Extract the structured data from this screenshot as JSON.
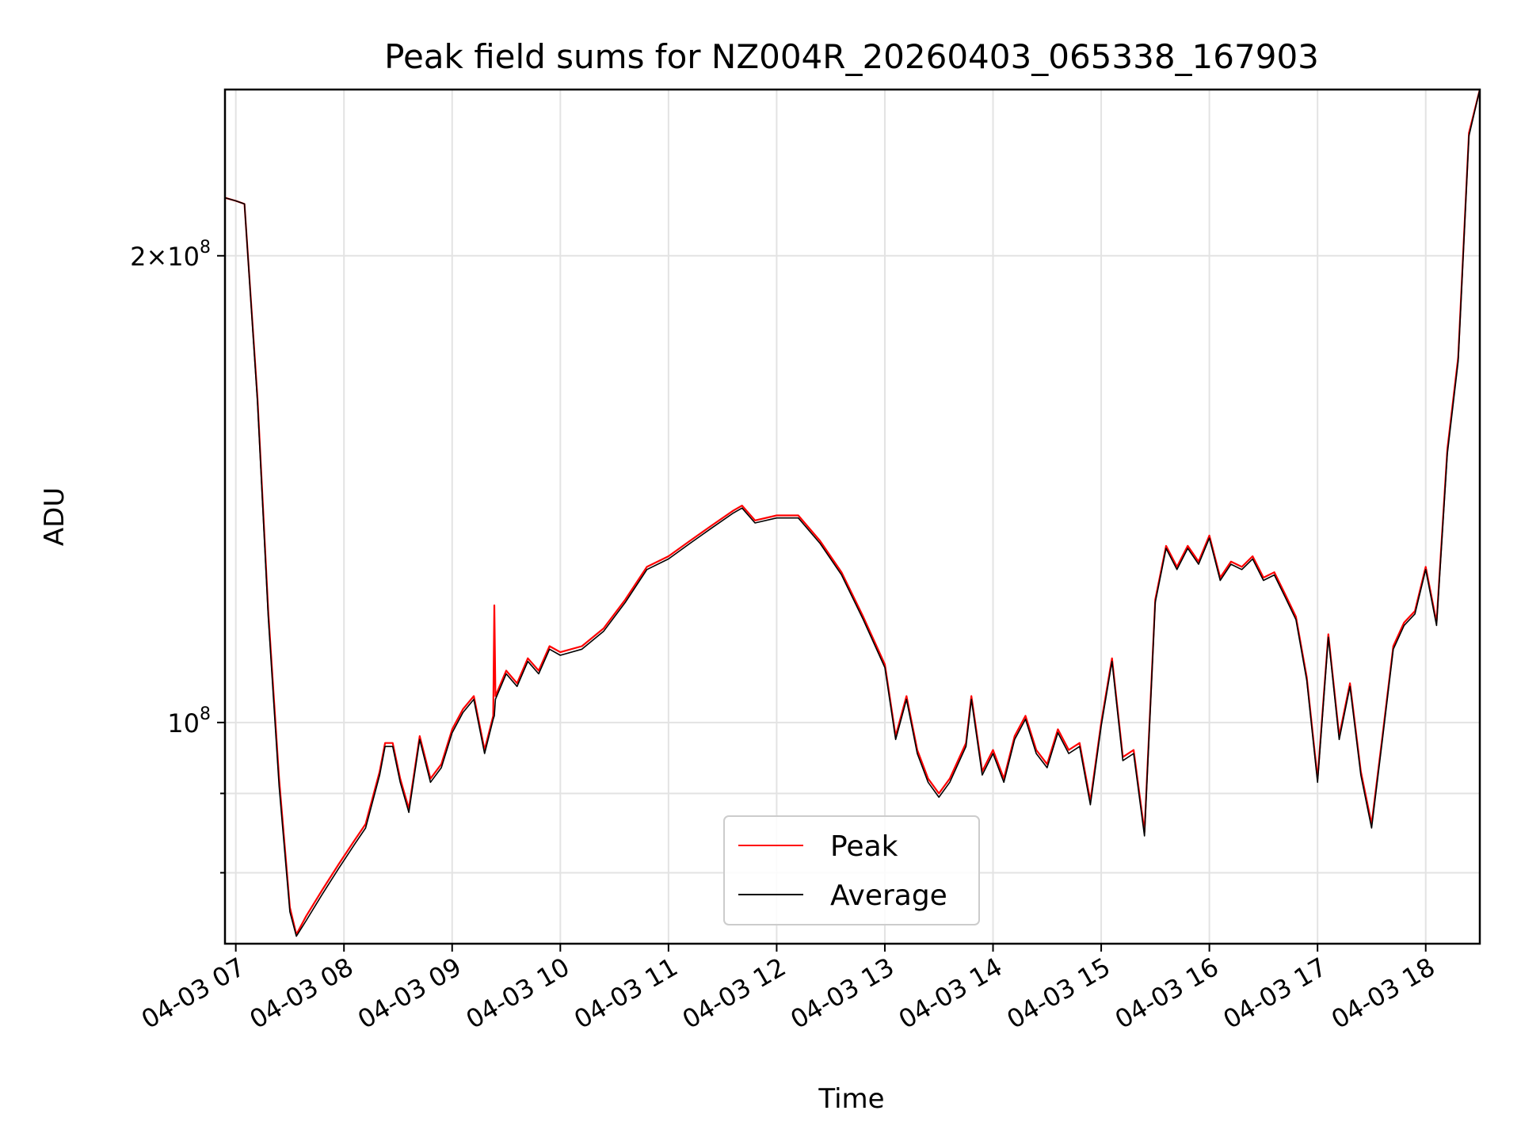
{
  "chart_data": {
    "type": "line",
    "title": "Peak field sums for NZ004R_20260403_065338_167903",
    "xlabel": "Time",
    "ylabel": "ADU",
    "yscale": "log",
    "ylim": [
      72000000,
      256000000
    ],
    "xlim": [
      6.9,
      18.5
    ],
    "grid": true,
    "legend_position": "bottom-center",
    "x_ticks": [
      {
        "value": 7,
        "label": "04-03 07"
      },
      {
        "value": 8,
        "label": "04-03 08"
      },
      {
        "value": 9,
        "label": "04-03 09"
      },
      {
        "value": 10,
        "label": "04-03 10"
      },
      {
        "value": 11,
        "label": "04-03 11"
      },
      {
        "value": 12,
        "label": "04-03 12"
      },
      {
        "value": 13,
        "label": "04-03 13"
      },
      {
        "value": 14,
        "label": "04-03 14"
      },
      {
        "value": 15,
        "label": "04-03 15"
      },
      {
        "value": 16,
        "label": "04-03 16"
      },
      {
        "value": 17,
        "label": "04-03 17"
      },
      {
        "value": 18,
        "label": "04-03 18"
      }
    ],
    "y_major_ticks": [
      {
        "value": 100000000,
        "mantissa": "",
        "exponent": "8"
      },
      {
        "value": 200000000,
        "mantissa": "2",
        "exponent": "8"
      }
    ],
    "y_minor_ticks": [
      80000000,
      90000000
    ],
    "series": [
      {
        "name": "Peak",
        "color": "#ff0000",
        "x": [
          6.9,
          7.0,
          7.08,
          7.2,
          7.3,
          7.4,
          7.5,
          7.56,
          7.65,
          7.8,
          7.95,
          8.1,
          8.2,
          8.33,
          8.38,
          8.45,
          8.52,
          8.6,
          8.7,
          8.8,
          8.9,
          9.0,
          9.1,
          9.2,
          9.3,
          9.38,
          9.39,
          9.4,
          9.5,
          9.6,
          9.7,
          9.8,
          9.9,
          10.0,
          10.2,
          10.4,
          10.6,
          10.8,
          11.0,
          11.2,
          11.4,
          11.6,
          11.68,
          11.8,
          12.0,
          12.2,
          12.4,
          12.6,
          12.8,
          13.0,
          13.1,
          13.2,
          13.3,
          13.4,
          13.5,
          13.6,
          13.75,
          13.8,
          13.9,
          14.0,
          14.1,
          14.2,
          14.3,
          14.4,
          14.5,
          14.6,
          14.7,
          14.8,
          14.9,
          15.0,
          15.1,
          15.2,
          15.3,
          15.4,
          15.5,
          15.6,
          15.7,
          15.8,
          15.9,
          16.0,
          16.1,
          16.2,
          16.3,
          16.4,
          16.5,
          16.6,
          16.7,
          16.8,
          16.9,
          17.0,
          17.1,
          17.2,
          17.3,
          17.4,
          17.5,
          17.6,
          17.7,
          17.8,
          17.9,
          18.0,
          18.1,
          18.2,
          18.3,
          18.4,
          18.5
        ],
        "values": [
          218000000,
          217000000,
          216000000,
          162000000,
          118000000,
          92000000,
          76000000,
          73000000,
          75000000,
          78000000,
          81000000,
          84000000,
          86000000,
          93000000,
          97000000,
          97000000,
          92000000,
          88000000,
          98000000,
          92000000,
          94000000,
          99000000,
          102000000,
          104000000,
          96000000,
          101000000,
          119000000,
          104000000,
          108000000,
          106000000,
          110000000,
          108000000,
          112000000,
          111000000,
          112000000,
          115000000,
          120000000,
          126000000,
          128000000,
          131000000,
          134000000,
          137000000,
          138000000,
          135000000,
          136000000,
          136000000,
          131000000,
          125000000,
          117000000,
          109000000,
          98000000,
          104000000,
          96000000,
          92000000,
          90000000,
          92000000,
          97000000,
          104000000,
          93000000,
          96000000,
          92000000,
          98000000,
          101000000,
          96000000,
          94000000,
          99000000,
          96000000,
          97000000,
          89000000,
          100000000,
          110000000,
          95000000,
          96000000,
          85000000,
          120000000,
          130000000,
          126000000,
          130000000,
          127000000,
          132000000,
          124000000,
          127000000,
          126000000,
          128000000,
          124000000,
          125000000,
          121000000,
          117000000,
          107000000,
          92000000,
          114000000,
          98000000,
          106000000,
          93000000,
          86000000,
          98000000,
          112000000,
          116000000,
          118000000,
          126000000,
          116000000,
          150000000,
          172000000,
          240000000,
          256000000
        ]
      },
      {
        "name": "Average",
        "color": "#000000",
        "x": [
          6.9,
          7.0,
          7.08,
          7.2,
          7.3,
          7.4,
          7.5,
          7.56,
          7.65,
          7.8,
          7.95,
          8.1,
          8.2,
          8.33,
          8.38,
          8.45,
          8.52,
          8.6,
          8.7,
          8.8,
          8.9,
          9.0,
          9.1,
          9.2,
          9.3,
          9.38,
          9.39,
          9.4,
          9.5,
          9.6,
          9.7,
          9.8,
          9.9,
          10.0,
          10.2,
          10.4,
          10.6,
          10.8,
          11.0,
          11.2,
          11.4,
          11.6,
          11.68,
          11.8,
          12.0,
          12.2,
          12.4,
          12.6,
          12.8,
          13.0,
          13.1,
          13.2,
          13.3,
          13.4,
          13.5,
          13.6,
          13.75,
          13.8,
          13.9,
          14.0,
          14.1,
          14.2,
          14.3,
          14.4,
          14.5,
          14.6,
          14.7,
          14.8,
          14.9,
          15.0,
          15.1,
          15.2,
          15.3,
          15.4,
          15.5,
          15.6,
          15.7,
          15.8,
          15.9,
          16.0,
          16.1,
          16.2,
          16.3,
          16.4,
          16.5,
          16.6,
          16.7,
          16.8,
          16.9,
          17.0,
          17.1,
          17.2,
          17.3,
          17.4,
          17.5,
          17.6,
          17.7,
          17.8,
          17.9,
          18.0,
          18.1,
          18.2,
          18.3,
          18.4,
          18.5
        ],
        "values": [
          218000000,
          217000000,
          216000000,
          161000000,
          117000000,
          91000000,
          75500000,
          72800000,
          74500000,
          77500000,
          80500000,
          83500000,
          85500000,
          92500000,
          96500000,
          96500000,
          91500000,
          87500000,
          97500000,
          91500000,
          93500000,
          98500000,
          101500000,
          103500000,
          95500000,
          100500000,
          101000000,
          103500000,
          107500000,
          105500000,
          109500000,
          107500000,
          111500000,
          110500000,
          111500000,
          114500000,
          119500000,
          125500000,
          127500000,
          130500000,
          133500000,
          136500000,
          137500000,
          134500000,
          135500000,
          135500000,
          130500000,
          124500000,
          116500000,
          108500000,
          97500000,
          103500000,
          95500000,
          91500000,
          89500000,
          91500000,
          96500000,
          103500000,
          92500000,
          95500000,
          91500000,
          97500000,
          100500000,
          95500000,
          93500000,
          98500000,
          95500000,
          96500000,
          88500000,
          99500000,
          109500000,
          94500000,
          95500000,
          84500000,
          119500000,
          129500000,
          125500000,
          129500000,
          126500000,
          131500000,
          123500000,
          126500000,
          125500000,
          127500000,
          123500000,
          124500000,
          120500000,
          116500000,
          106500000,
          91500000,
          113500000,
          97500000,
          105500000,
          92500000,
          85500000,
          97500000,
          111500000,
          115500000,
          117500000,
          125500000,
          115500000,
          149000000,
          171000000,
          239000000,
          256000000
        ]
      }
    ]
  }
}
